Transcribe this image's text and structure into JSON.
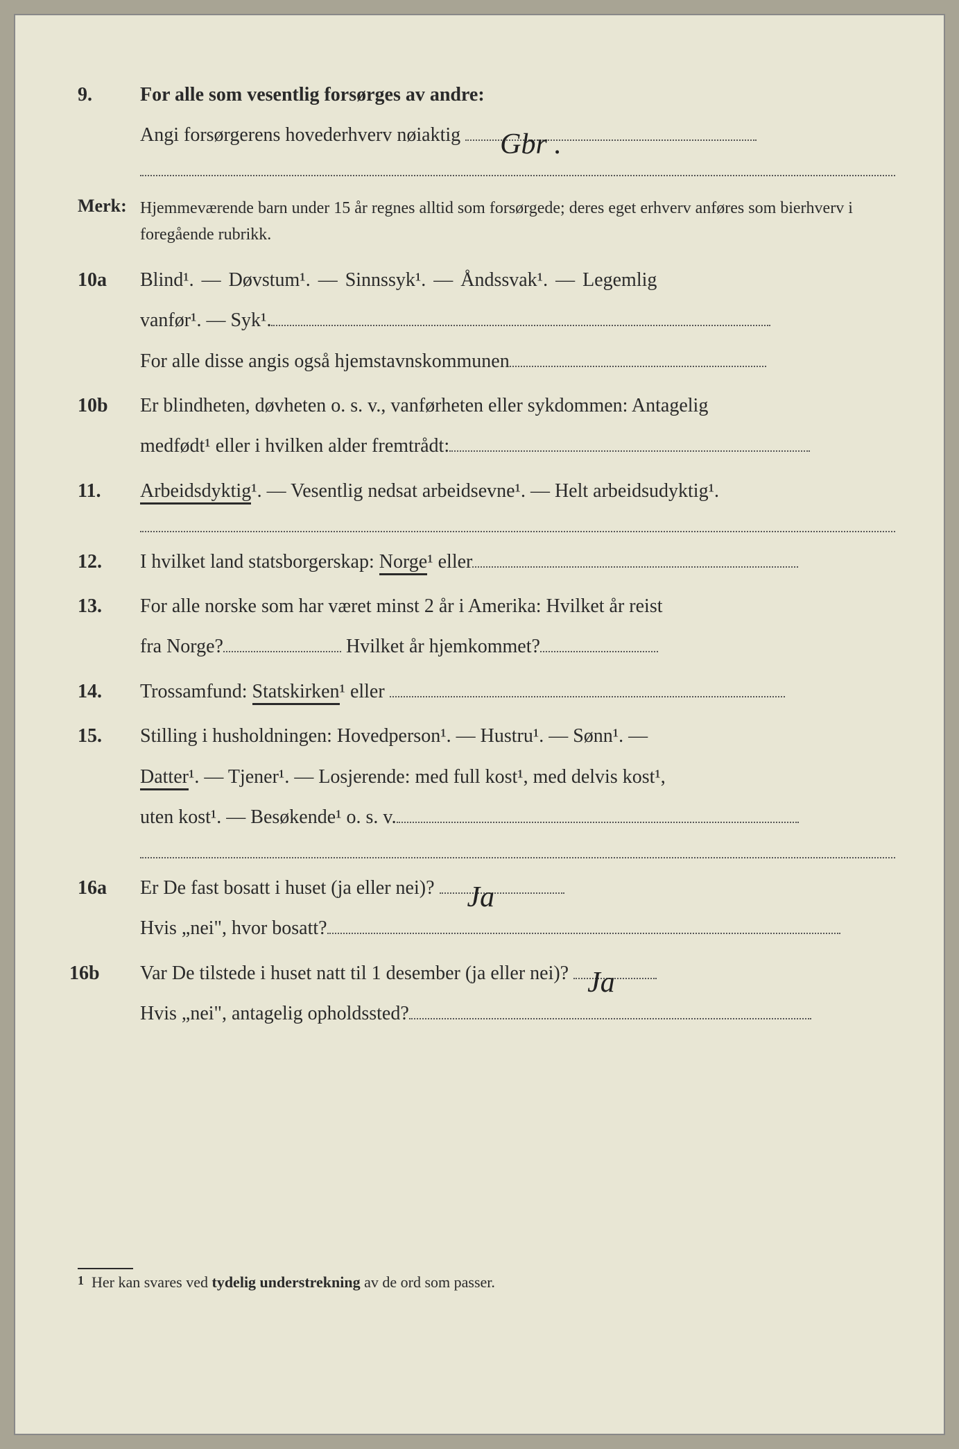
{
  "q9": {
    "num": "9.",
    "line1": "For alle som vesentlig forsørges av andre:",
    "line2_pre": "Angi forsørgerens hovederhverv nøiaktig",
    "handwritten": "Gbr ."
  },
  "merk": {
    "label": "Merk:",
    "text": "Hjemmeværende barn under 15 år regnes alltid som forsørgede; deres eget erhverv anføres som bierhverv i foregående rubrikk."
  },
  "q10a": {
    "num": "10a",
    "text1": "Blind¹.  —  Døvstum¹.  —  Sinnssyk¹.  —  Åndssvak¹.  —  Legemlig",
    "text2a": "vanfør¹. — Syk¹.",
    "text3": "For alle disse angis også hjemstavnskommunen"
  },
  "q10b": {
    "num": "10b",
    "text1": "Er blindheten, døvheten o. s. v., vanførheten eller sykdommen: Antagelig",
    "text2": "medfødt¹ eller i hvilken alder fremtrådt:"
  },
  "q11": {
    "num": "11.",
    "underlined": "Arbeidsdyktig",
    "rest": "¹. — Vesentlig nedsat arbeidsevne¹. — Helt arbeidsudyktig¹."
  },
  "q12": {
    "num": "12.",
    "pre": "I hvilket land statsborgerskap: ",
    "underlined": "Norge",
    "rest": "¹ eller"
  },
  "q13": {
    "num": "13.",
    "text1": "For alle norske som har været minst 2 år i Amerika:  Hvilket år reist",
    "text2a": "fra Norge?",
    "text2b": " Hvilket år hjemkommet?"
  },
  "q14": {
    "num": "14.",
    "pre": "Trossamfund:  ",
    "underlined": "Statskirken",
    "rest": "¹ eller "
  },
  "q15": {
    "num": "15.",
    "text1": "Stilling i husholdningen:  Hovedperson¹.  —  Hustru¹.  —  Sønn¹.  —",
    "underlined": "Datter",
    "text2": "¹.  —  Tjener¹.  —  Losjerende:  med full kost¹,  med delvis kost¹,",
    "text3": "uten kost¹. — Besøkende¹ o. s. v."
  },
  "q16a": {
    "num": "16a",
    "text1": "Er De fast bosatt i huset (ja eller nei)?",
    "hand1": "Ja",
    "text2": "Hvis „nei\", hvor bosatt?"
  },
  "q16b": {
    "num": "16b",
    "text1": "Var De tilstede i huset natt til 1 desember (ja eller nei)?",
    "hand1": "Ja",
    "text2": "Hvis „nei\", antagelig opholdssted?"
  },
  "footnote": {
    "num": "1",
    "text": "Her kan svares ved tydelig understrekning av de ord som passer."
  }
}
